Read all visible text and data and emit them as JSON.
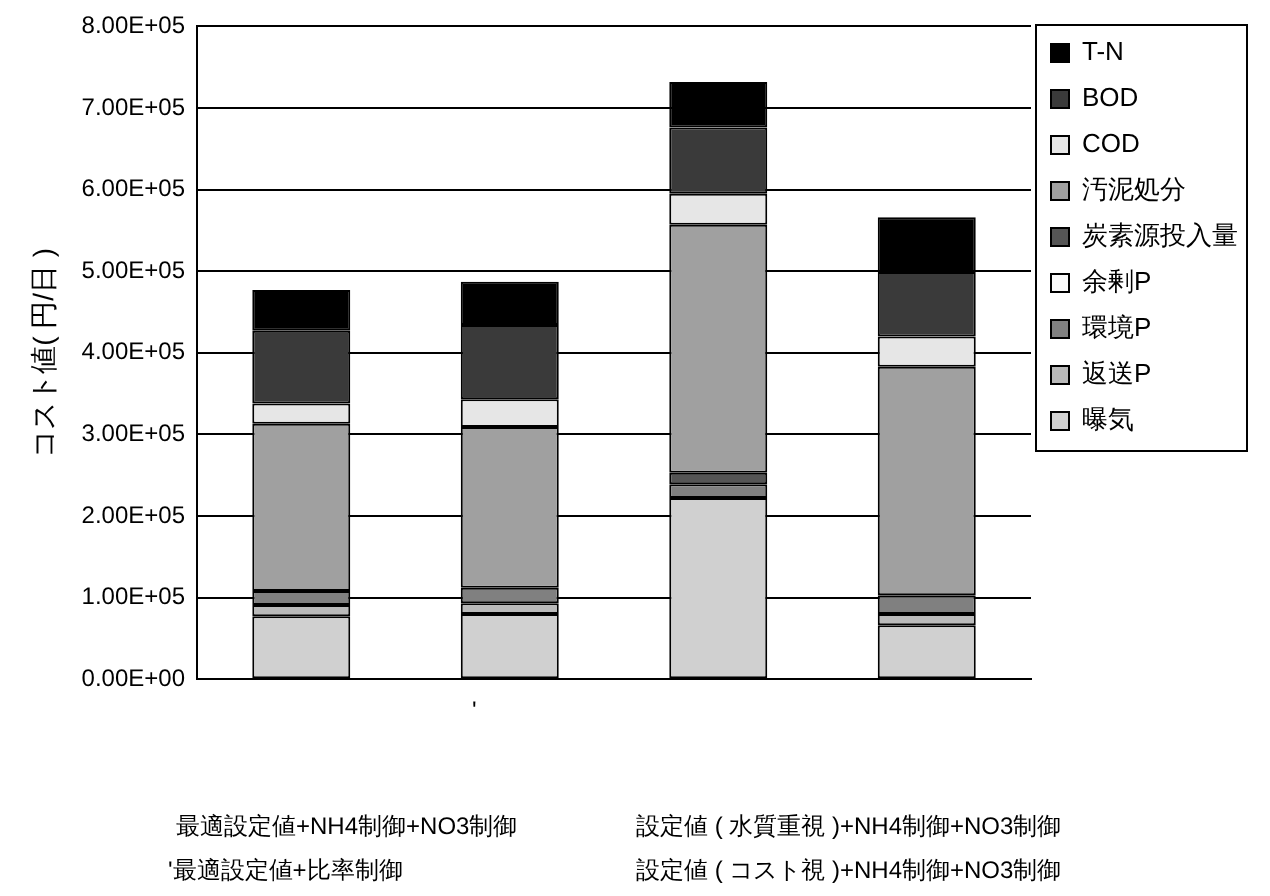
{
  "chart_data": {
    "type": "bar",
    "stacked": true,
    "ylabel": "コスト値( 円/日 )",
    "categories": [
      null,
      null,
      null,
      null
    ],
    "series": [
      {
        "name": "曝気",
        "color": "#d0d0d0",
        "values": [
          77000,
          80000,
          222000,
          66000
        ]
      },
      {
        "name": "返送P",
        "color": "#bababa",
        "values": [
          14000,
          13000,
          0,
          14000
        ]
      },
      {
        "name": "環境P",
        "color": "#808080",
        "values": [
          17000,
          19000,
          17000,
          23000
        ]
      },
      {
        "name": "余剰P",
        "color": "#fafafa",
        "values": [
          0,
          0,
          0,
          0
        ]
      },
      {
        "name": "炭素源投入量",
        "color": "#555555",
        "values": [
          0,
          0,
          14000,
          0
        ]
      },
      {
        "name": "汚泥処分",
        "color": "#a0a0a0",
        "values": [
          205000,
          197000,
          304000,
          280000
        ]
      },
      {
        "name": "COD",
        "color": "#e6e6e6",
        "values": [
          25000,
          34000,
          38000,
          37000
        ]
      },
      {
        "name": "BOD",
        "color": "#3a3a3a",
        "values": [
          89000,
          91000,
          81000,
          79000
        ]
      },
      {
        "name": "T-N",
        "color": "#000000",
        "values": [
          50000,
          53000,
          56000,
          67000
        ]
      }
    ],
    "ylim": [
      0,
      800000
    ],
    "yticks": [
      {
        "value": 0,
        "label": "0.00E+00"
      },
      {
        "value": 100000,
        "label": "1.00E+05"
      },
      {
        "value": 200000,
        "label": "2.00E+05"
      },
      {
        "value": 300000,
        "label": "3.00E+05"
      },
      {
        "value": 400000,
        "label": "4.00E+05"
      },
      {
        "value": 500000,
        "label": "5.00E+05"
      },
      {
        "value": 600000,
        "label": "6.00E+05"
      },
      {
        "value": 700000,
        "label": "7.00E+05"
      },
      {
        "value": 800000,
        "label": "8.00E+05"
      }
    ],
    "grid": "y",
    "legend": "right",
    "annotations": [
      "'",
      "最適設定値+NH4制御+NO3制御",
      "設定値 ( 水質重視 )+NH4制御+NO3制御",
      "'最適設定値+比率制御",
      "設定値 ( コスト視 )+NH4制御+NO3制御"
    ]
  }
}
